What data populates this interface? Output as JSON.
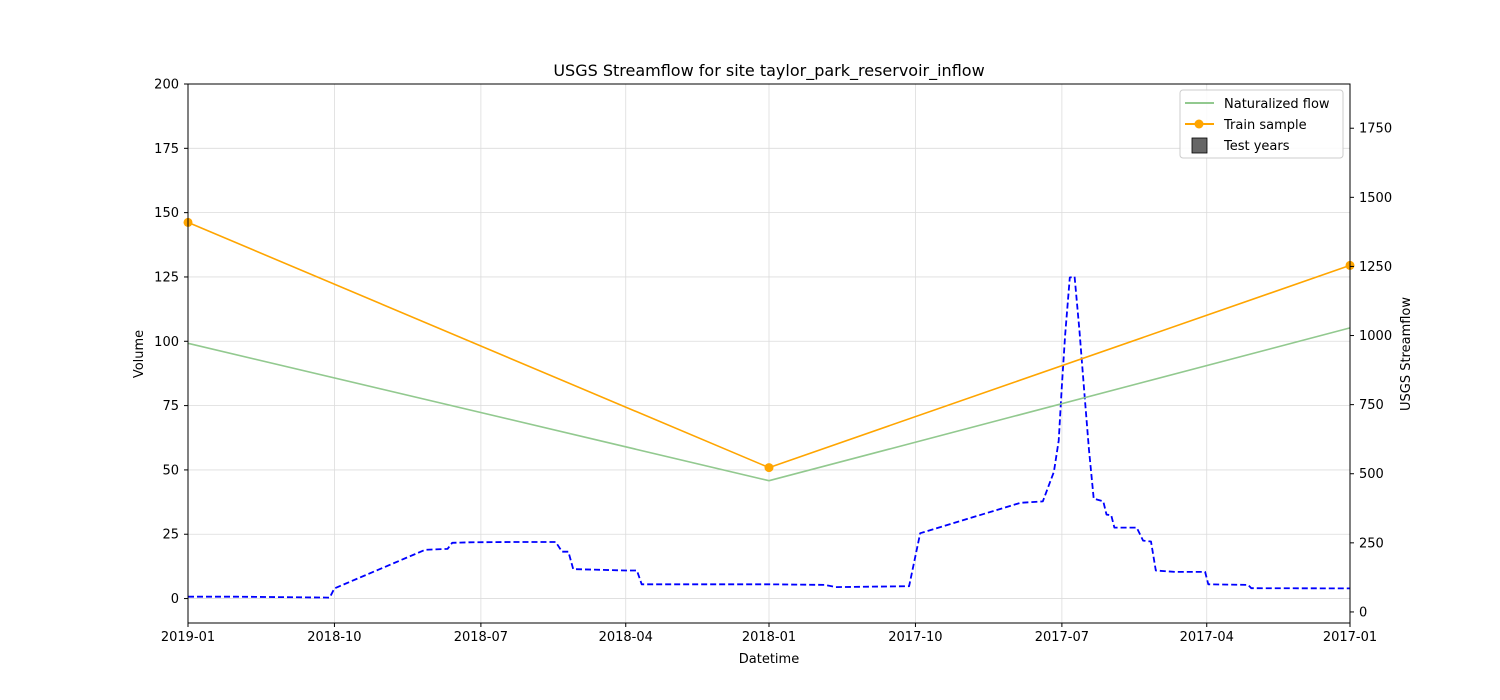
{
  "chart_data": {
    "type": "line",
    "title": "USGS Streamflow for site taylor_park_reservoir_inflow",
    "xlabel": "Datetime",
    "ylabel": "Volume",
    "y2label": "USGS Streamflow",
    "x_axis": {
      "type": "date",
      "inverted": true,
      "range": [
        "2019-01-01",
        "2017-01-01"
      ],
      "ticks": [
        "2019-01",
        "2018-10",
        "2018-07",
        "2018-04",
        "2018-01",
        "2017-10",
        "2017-07",
        "2017-04",
        "2017-01"
      ]
    },
    "ylim": [
      -9.5,
      200
    ],
    "yticks": [
      0,
      25,
      50,
      75,
      100,
      125,
      150,
      175,
      200
    ],
    "y2lim": [
      -40,
      1910
    ],
    "y2ticks": [
      0,
      250,
      500,
      750,
      1000,
      1250,
      1500,
      1750
    ],
    "grid": true,
    "legend_position": "upper right",
    "series": [
      {
        "name": "Naturalized flow",
        "axis": "left",
        "color": "#92c98f",
        "style": "solid",
        "points": [
          [
            "2019-01-01",
            99.2
          ],
          [
            "2018-01-01",
            45.8
          ],
          [
            "2017-01-01",
            105.2
          ]
        ]
      },
      {
        "name": "Train sample",
        "axis": "left",
        "color": "#ffa500",
        "style": "solid",
        "marker": "circle",
        "points": [
          [
            "2019-01-01",
            146.2
          ],
          [
            "2018-01-01",
            50.9
          ],
          [
            "2017-01-01",
            129.5
          ]
        ]
      },
      {
        "name": "",
        "axis": "right",
        "color": "#0000ff",
        "style": "dashed",
        "points": [
          [
            "2019-01-01",
            55
          ],
          [
            "2018-12-01",
            55
          ],
          [
            "2018-10-04",
            52
          ],
          [
            "2018-10-01",
            85
          ],
          [
            "2018-08-05",
            225
          ],
          [
            "2018-07-22",
            228
          ],
          [
            "2018-07-19",
            250
          ],
          [
            "2018-07-08",
            252
          ],
          [
            "2018-06-10",
            253
          ],
          [
            "2018-05-15",
            253
          ],
          [
            "2018-05-11",
            218
          ],
          [
            "2018-05-07",
            218
          ],
          [
            "2018-05-04",
            155
          ],
          [
            "2018-04-01",
            150
          ],
          [
            "2018-03-25",
            150
          ],
          [
            "2018-03-22",
            100
          ],
          [
            "2018-01-01",
            100
          ],
          [
            "2017-11-27",
            98
          ],
          [
            "2017-11-20",
            90
          ],
          [
            "2017-10-05",
            93
          ],
          [
            "2017-09-28",
            285
          ],
          [
            "2017-07-27",
            395
          ],
          [
            "2017-07-13",
            400
          ],
          [
            "2017-07-06",
            507
          ],
          [
            "2017-07-03",
            620
          ],
          [
            "2017-07-01",
            820
          ],
          [
            "2017-06-29",
            1000
          ],
          [
            "2017-06-26",
            1210
          ],
          [
            "2017-06-23",
            1213
          ],
          [
            "2017-06-20",
            1020
          ],
          [
            "2017-06-17",
            800
          ],
          [
            "2017-06-14",
            590
          ],
          [
            "2017-06-11",
            410
          ],
          [
            "2017-06-05",
            400
          ],
          [
            "2017-06-03",
            352
          ],
          [
            "2017-05-31",
            350
          ],
          [
            "2017-05-29",
            305
          ],
          [
            "2017-05-15",
            305
          ],
          [
            "2017-05-11",
            258
          ],
          [
            "2017-05-06",
            255
          ],
          [
            "2017-05-03",
            150
          ],
          [
            "2017-04-21",
            145
          ],
          [
            "2017-04-02",
            145
          ],
          [
            "2017-03-31",
            100
          ],
          [
            "2017-03-06",
            98
          ],
          [
            "2017-03-04",
            86
          ],
          [
            "2017-01-01",
            85
          ]
        ]
      }
    ]
  },
  "legend": {
    "items": [
      {
        "label": "Naturalized flow",
        "color": "#92c98f",
        "kind": "line"
      },
      {
        "label": "Train sample",
        "color": "#ffa500",
        "kind": "line-marker"
      },
      {
        "label": "Test years",
        "color": "#666666",
        "kind": "box"
      }
    ]
  }
}
